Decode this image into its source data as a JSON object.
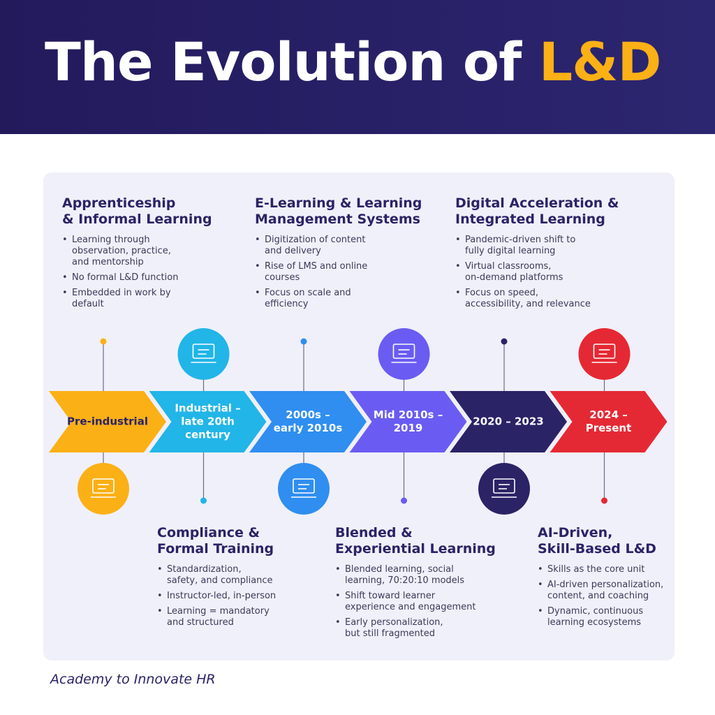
{
  "header": {
    "title": "The Evolution of",
    "highlight": "L&D"
  },
  "stages": [
    {
      "label": [
        "Pre-industrial"
      ],
      "heading": [
        "Apprenticeship",
        "& Informal Learning"
      ],
      "bullets": [
        [
          "Learning through",
          "observation, practice,",
          "and mentorship"
        ],
        [
          "No formal L&D function"
        ],
        [
          "Embedded in work by",
          "default"
        ]
      ]
    },
    {
      "label": [
        "Industrial –",
        "late 20th",
        "century"
      ],
      "heading": [
        "Compliance &",
        "Formal Training"
      ],
      "bullets": [
        [
          "Standardization,",
          "safety, and compliance"
        ],
        [
          "Instructor-led, in-person"
        ],
        [
          "Learning = mandatory",
          "and structured"
        ]
      ]
    },
    {
      "label": [
        "2000s –",
        "early 2010s"
      ],
      "heading": [
        "E-Learning & Learning",
        "Management Systems"
      ],
      "bullets": [
        [
          "Digitization of content",
          "and delivery"
        ],
        [
          "Rise of LMS and online",
          "courses"
        ],
        [
          "Focus on scale and",
          "efficiency"
        ]
      ]
    },
    {
      "label": [
        "Mid 2010s –",
        "2019"
      ],
      "heading": [
        "Blended &",
        "Experiential Learning"
      ],
      "bullets": [
        [
          "Blended learning, social",
          "learning, 70:20:10 models"
        ],
        [
          "Shift toward learner",
          "experience and engagement"
        ],
        [
          "Early personalization,",
          "but still fragmented"
        ]
      ]
    },
    {
      "label": [
        "2020 – 2023"
      ],
      "heading": [
        "Digital Acceleration &",
        "Integrated Learning"
      ],
      "bullets": [
        [
          "Pandemic-driven shift to",
          "fully digital learning"
        ],
        [
          "Virtual classrooms,",
          "on-demand platforms"
        ],
        [
          "Focus on speed,",
          "accessibility, and relevance"
        ]
      ]
    },
    {
      "label": [
        "2024 –",
        "Present"
      ],
      "heading": [
        "AI-Driven,",
        "Skill-Based L&D"
      ],
      "bullets": [
        [
          "Skills as the core unit"
        ],
        [
          "AI-driven personalization,",
          "content, and coaching"
        ],
        [
          "Dynamic, continuous",
          "learning ecosystems"
        ]
      ]
    }
  ],
  "footer": "Academy to Innovate HR"
}
